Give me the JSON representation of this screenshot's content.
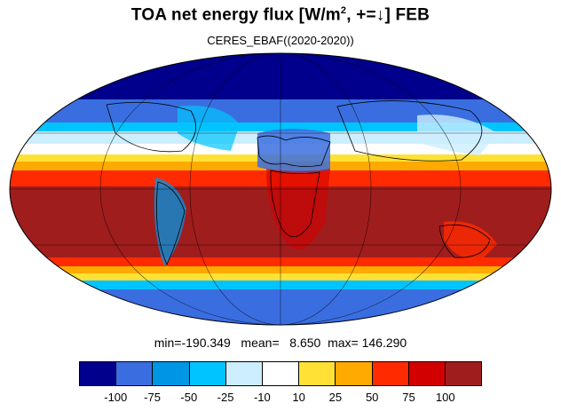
{
  "title": {
    "main": "TOA net energy flux  [W/m",
    "sup": "2",
    "rest": ", +=↓] FEB"
  },
  "subtitle": "CERES_EBAF((2020-2020))",
  "stats": "min=-190.349   mean=   8.650  max= 146.290",
  "colorbar": {
    "colors": [
      "#00008c",
      "#3a6ee0",
      "#0096e6",
      "#00c4ff",
      "#cceeff",
      "#ffffff",
      "#ffe135",
      "#ffaa00",
      "#ff2a00",
      "#d20000",
      "#a01d1d"
    ],
    "labels": [
      "-100",
      "-75",
      "-50",
      "-25",
      "-10",
      "10",
      "25",
      "50",
      "75",
      "100"
    ]
  }
}
